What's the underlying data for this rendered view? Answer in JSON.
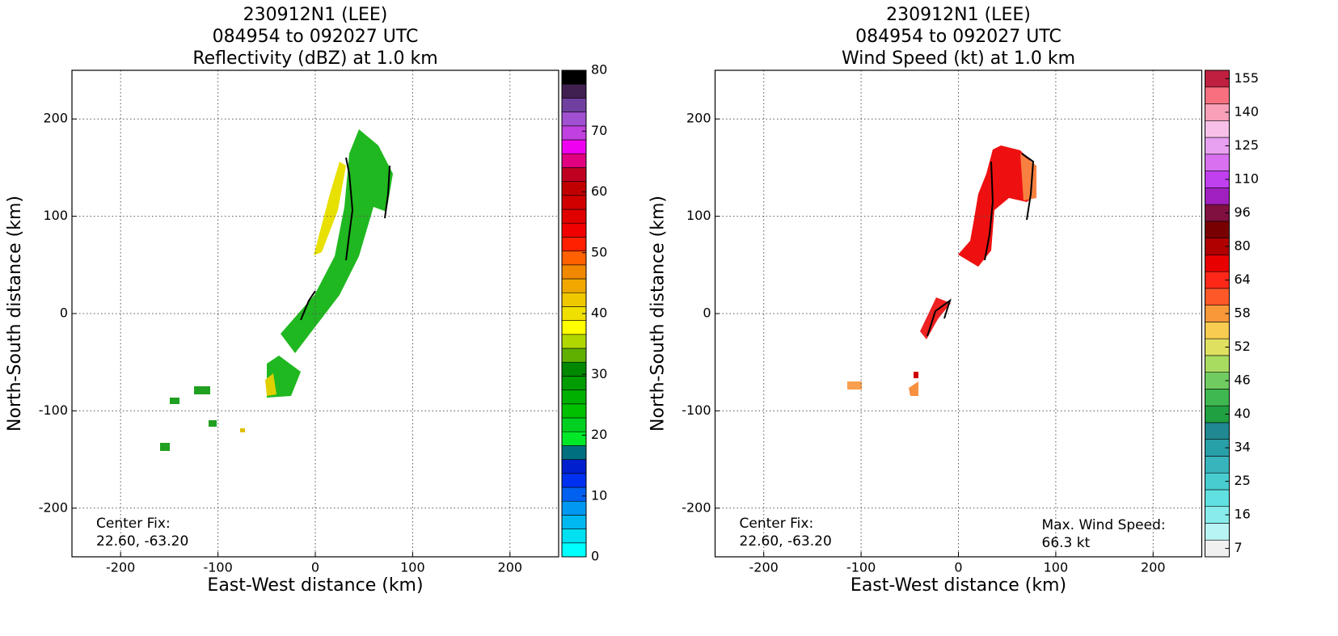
{
  "chart_data": [
    {
      "type": "radar-map",
      "title_lines": [
        "230912N1 (LEE)",
        "084954 to 092027 UTC",
        "Reflectivity (dBZ) at 1.0 km"
      ],
      "xlabel": "East-West distance (km)",
      "ylabel": "North-South distance (km)",
      "xlim": [
        -250,
        250
      ],
      "ylim": [
        -250,
        250
      ],
      "xticks": [
        -200,
        -100,
        0,
        100,
        200
      ],
      "yticks": [
        -200,
        -100,
        0,
        100,
        200
      ],
      "grid": true,
      "annotation_left": [
        "Center Fix:",
        "22.60, -63.20"
      ],
      "colorbar": {
        "scale": "linear",
        "lim": [
          0,
          80
        ],
        "ticks": [
          0,
          10,
          20,
          30,
          40,
          50,
          60,
          70,
          80
        ],
        "colors": [
          "#00ffff",
          "#00e0f0",
          "#00b8f0",
          "#0098f0",
          "#0060f0",
          "#0030f0",
          "#0020d0",
          "#007080",
          "#00e828",
          "#00d020",
          "#00c000",
          "#00b000",
          "#009c00",
          "#008800",
          "#60b000",
          "#b0d800",
          "#ffff00",
          "#f0e000",
          "#f0c800",
          "#f0a800",
          "#f08800",
          "#ff6000",
          "#ff2000",
          "#f00000",
          "#e00000",
          "#d00000",
          "#c00000",
          "#c00020",
          "#e00080",
          "#f000f0",
          "#c040e0",
          "#a050d0",
          "#7040a0",
          "#402050",
          "#000000"
        ]
      }
    },
    {
      "type": "radar-map",
      "title_lines": [
        "230912N1 (LEE)",
        "084954 to 092027 UTC",
        "Wind Speed (kt) at 1.0 km"
      ],
      "xlabel": "East-West distance (km)",
      "ylabel": "North-South distance (km)",
      "xlim": [
        -250,
        250
      ],
      "ylim": [
        -250,
        250
      ],
      "xticks": [
        -200,
        -100,
        0,
        100,
        200
      ],
      "yticks": [
        -200,
        -100,
        0,
        100,
        200
      ],
      "grid": true,
      "annotation_left": [
        "Center Fix:",
        "22.60, -63.20"
      ],
      "annotation_right": [
        "Max. Wind Speed:",
        "66.3 kt"
      ],
      "colorbar": {
        "scale": "categorical",
        "ticks": [
          7,
          16,
          25,
          34,
          40,
          46,
          52,
          58,
          64,
          80,
          96,
          110,
          125,
          140,
          155
        ],
        "colors": [
          "#f0f0f0",
          "#b8f4f4",
          "#88ecec",
          "#60e0e0",
          "#48ccd0",
          "#38b4bc",
          "#28a0a8",
          "#208890",
          "#20a040",
          "#40b850",
          "#70cc60",
          "#a8dc60",
          "#e0e060",
          "#f8cc50",
          "#f89838",
          "#ff5828",
          "#ff2818",
          "#e80000",
          "#b00000",
          "#780000",
          "#801040",
          "#a020c0",
          "#c040f0",
          "#d870f0",
          "#e8a0f0",
          "#f8c0e8",
          "#f8a0b8",
          "#f87080",
          "#c02040"
        ]
      }
    }
  ]
}
